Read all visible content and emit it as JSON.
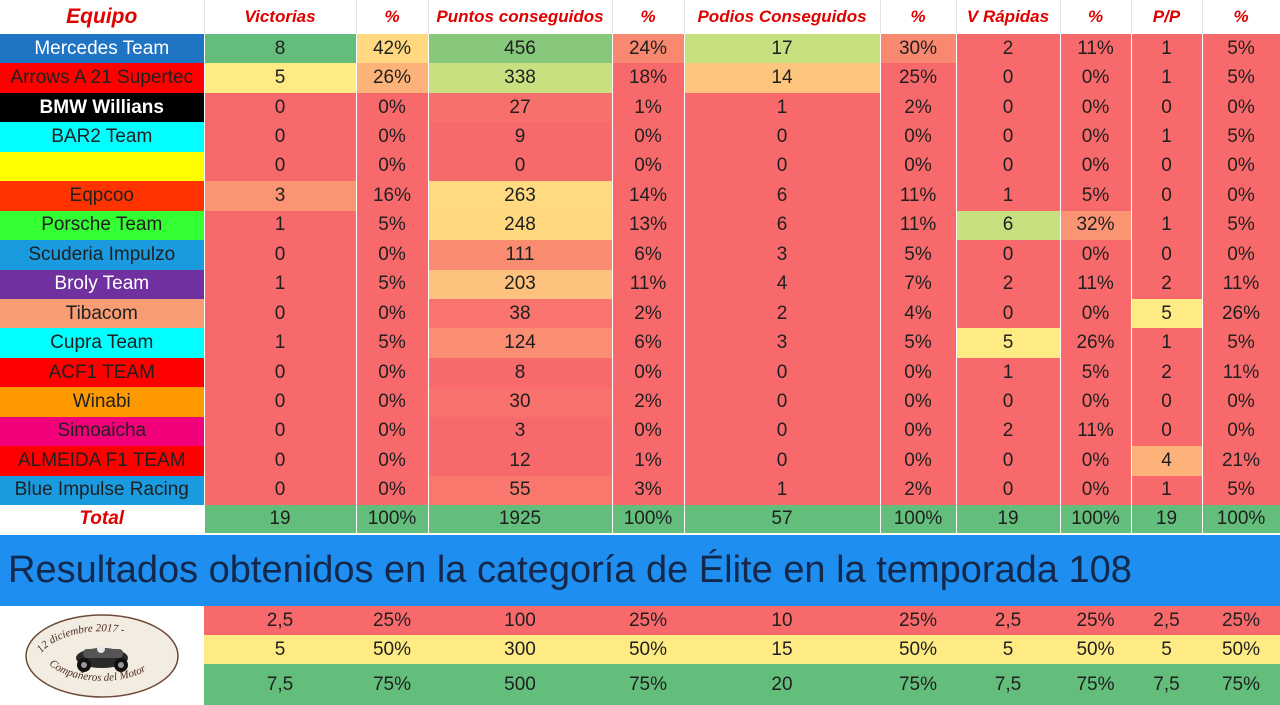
{
  "header": [
    "Equipo",
    "Victorias",
    "%",
    "Puntos conseguidos",
    "%",
    "Podios Conseguidos",
    "%",
    "V Rápidas",
    "%",
    "P/P",
    "%"
  ],
  "rows": [
    {
      "team": "Mercedes Team",
      "team_bg": "#1f74c4",
      "team_color": "#ffffff",
      "team_bold": false,
      "values": [
        "8",
        "42%",
        "456",
        "24%",
        "17",
        "30%",
        "2",
        "11%",
        "1",
        "5%"
      ],
      "bgs": [
        "#63be7b",
        "#ffd880",
        "#86c77c",
        "#f98870",
        "#c6e07f",
        "#f98870",
        "#f8696b",
        "#f8696b",
        "#f8696b",
        "#f8696b"
      ]
    },
    {
      "team": "Arrows A 21 Supertec",
      "team_bg": "#ff0000",
      "team_color": "#202020",
      "team_bold": false,
      "values": [
        "5",
        "26%",
        "338",
        "18%",
        "14",
        "25%",
        "0",
        "0%",
        "1",
        "5%"
      ],
      "bgs": [
        "#ffeb84",
        "#fcb279",
        "#c8e080",
        "#f8696b",
        "#fdc57d",
        "#f8696b",
        "#f8696b",
        "#f8696b",
        "#f8696b",
        "#f8696b"
      ]
    },
    {
      "team": "BMW Willians",
      "team_bg": "#000000",
      "team_color": "#ffffff",
      "team_bold": true,
      "values": [
        "0",
        "0%",
        "27",
        "1%",
        "1",
        "2%",
        "0",
        "0%",
        "0",
        "0%"
      ],
      "bgs": [
        "#f8696b",
        "#f8696b",
        "#f8706c",
        "#f8696b",
        "#f8696b",
        "#f8696b",
        "#f8696b",
        "#f8696b",
        "#f8696b",
        "#f8696b"
      ]
    },
    {
      "team": "BAR2 Team",
      "team_bg": "#00ffff",
      "team_color": "#202020",
      "team_bold": false,
      "values": [
        "0",
        "0%",
        "9",
        "0%",
        "0",
        "0%",
        "0",
        "0%",
        "1",
        "5%"
      ],
      "bgs": [
        "#f8696b",
        "#f8696b",
        "#f8696b",
        "#f8696b",
        "#f8696b",
        "#f8696b",
        "#f8696b",
        "#f8696b",
        "#f8696b",
        "#f8696b"
      ]
    },
    {
      "team": "",
      "team_bg": "#ffff00",
      "team_color": "#202020",
      "team_bold": false,
      "values": [
        "0",
        "0%",
        "0",
        "0%",
        "0",
        "0%",
        "0",
        "0%",
        "0",
        "0%"
      ],
      "bgs": [
        "#f8696b",
        "#f8696b",
        "#f8696b",
        "#f8696b",
        "#f8696b",
        "#f8696b",
        "#f8696b",
        "#f8696b",
        "#f8696b",
        "#f8696b"
      ]
    },
    {
      "team": "Eqpcoo",
      "team_bg": "#ff3300",
      "team_color": "#202020",
      "team_bold": false,
      "values": [
        "3",
        "16%",
        "263",
        "14%",
        "6",
        "11%",
        "1",
        "5%",
        "0",
        "0%"
      ],
      "bgs": [
        "#fa9473",
        "#f8696b",
        "#ffda81",
        "#f8696b",
        "#f8696b",
        "#f8696b",
        "#f8696b",
        "#f8696b",
        "#f8696b",
        "#f8696b"
      ]
    },
    {
      "team": "Porsche Team",
      "team_bg": "#33ff33",
      "team_color": "#202020",
      "team_bold": false,
      "values": [
        "1",
        "5%",
        "248",
        "13%",
        "6",
        "11%",
        "6",
        "32%",
        "1",
        "5%"
      ],
      "bgs": [
        "#f8696b",
        "#f8696b",
        "#ffd880",
        "#f8696b",
        "#f8696b",
        "#f8696b",
        "#c8e080",
        "#fa9473",
        "#f8696b",
        "#f8696b"
      ]
    },
    {
      "team": "Scuderia Impulzo",
      "team_bg": "#1a9be0",
      "team_color": "#202020",
      "team_bold": false,
      "values": [
        "0",
        "0%",
        "111",
        "6%",
        "3",
        "5%",
        "0",
        "0%",
        "0",
        "0%"
      ],
      "bgs": [
        "#f8696b",
        "#f8696b",
        "#fa8c72",
        "#f8696b",
        "#f8696b",
        "#f8696b",
        "#f8696b",
        "#f8696b",
        "#f8696b",
        "#f8696b"
      ]
    },
    {
      "team": "Broly Team",
      "team_bg": "#7030a0",
      "team_color": "#ffffff",
      "team_bold": false,
      "values": [
        "1",
        "5%",
        "203",
        "11%",
        "4",
        "7%",
        "2",
        "11%",
        "2",
        "11%"
      ],
      "bgs": [
        "#f8696b",
        "#f8696b",
        "#fdc27d",
        "#f8696b",
        "#f8696b",
        "#f8696b",
        "#f8696b",
        "#f8696b",
        "#f8696b",
        "#f8696b"
      ]
    },
    {
      "team": "Tibacom",
      "team_bg": "#f89c74",
      "team_color": "#202020",
      "team_bold": false,
      "values": [
        "0",
        "0%",
        "38",
        "2%",
        "2",
        "4%",
        "0",
        "0%",
        "5",
        "26%"
      ],
      "bgs": [
        "#f8696b",
        "#f8696b",
        "#f8746d",
        "#f8696b",
        "#f8696b",
        "#f8696b",
        "#f8696b",
        "#f8696b",
        "#ffeb84",
        "#f8696b"
      ]
    },
    {
      "team": "Cupra Team",
      "team_bg": "#00ffff",
      "team_color": "#202020",
      "team_bold": false,
      "values": [
        "1",
        "5%",
        "124",
        "6%",
        "3",
        "5%",
        "5",
        "26%",
        "1",
        "5%"
      ],
      "bgs": [
        "#f8696b",
        "#f8696b",
        "#fa8d72",
        "#f8696b",
        "#f8696b",
        "#f8696b",
        "#ffeb84",
        "#f8696b",
        "#f8696b",
        "#f8696b"
      ]
    },
    {
      "team": "ACF1 TEAM",
      "team_bg": "#ff0000",
      "team_color": "#202020",
      "team_bold": false,
      "values": [
        "0",
        "0%",
        "8",
        "0%",
        "0",
        "0%",
        "1",
        "5%",
        "2",
        "11%"
      ],
      "bgs": [
        "#f8696b",
        "#f8696b",
        "#f8696b",
        "#f8696b",
        "#f8696b",
        "#f8696b",
        "#f8696b",
        "#f8696b",
        "#f8696b",
        "#f8696b"
      ]
    },
    {
      "team": "Winabi",
      "team_bg": "#ff9900",
      "team_color": "#202020",
      "team_bold": false,
      "values": [
        "0",
        "0%",
        "30",
        "2%",
        "0",
        "0%",
        "0",
        "0%",
        "0",
        "0%"
      ],
      "bgs": [
        "#f8696b",
        "#f8696b",
        "#f8716c",
        "#f8696b",
        "#f8696b",
        "#f8696b",
        "#f8696b",
        "#f8696b",
        "#f8696b",
        "#f8696b"
      ]
    },
    {
      "team": "Simoaicha",
      "team_bg": "#f2007a",
      "team_color": "#202020",
      "team_bold": false,
      "values": [
        "0",
        "0%",
        "3",
        "0%",
        "0",
        "0%",
        "2",
        "11%",
        "0",
        "0%"
      ],
      "bgs": [
        "#f8696b",
        "#f8696b",
        "#f8696b",
        "#f8696b",
        "#f8696b",
        "#f8696b",
        "#f8696b",
        "#f8696b",
        "#f8696b",
        "#f8696b"
      ]
    },
    {
      "team": "ALMEIDA F1 TEAM",
      "team_bg": "#ff0000",
      "team_color": "#202020",
      "team_bold": false,
      "values": [
        "0",
        "0%",
        "12",
        "1%",
        "0",
        "0%",
        "0",
        "0%",
        "4",
        "21%"
      ],
      "bgs": [
        "#f8696b",
        "#f8696b",
        "#f8696b",
        "#f8696b",
        "#f8696b",
        "#f8696b",
        "#f8696b",
        "#f8696b",
        "#fcb279",
        "#f8696b"
      ]
    },
    {
      "team": "Blue Impulse Racing",
      "team_bg": "#1a9be0",
      "team_color": "#202020",
      "team_bold": false,
      "values": [
        "0",
        "0%",
        "55",
        "3%",
        "1",
        "2%",
        "0",
        "0%",
        "1",
        "5%"
      ],
      "bgs": [
        "#f8696b",
        "#f8696b",
        "#f8786d",
        "#f8696b",
        "#f8696b",
        "#f8696b",
        "#f8696b",
        "#f8696b",
        "#f8696b",
        "#f8696b"
      ]
    }
  ],
  "total": {
    "label": "Total",
    "values": [
      "19",
      "100%",
      "1925",
      "100%",
      "57",
      "100%",
      "19",
      "100%",
      "19",
      "100%"
    ]
  },
  "banner": "Resultados obtenidos en la categoría de Élite en la temporada 108",
  "reference_rows": [
    [
      "2,5",
      "25%",
      "100",
      "25%",
      "10",
      "25%",
      "2,5",
      "25%",
      "2,5",
      "25%"
    ],
    [
      "5",
      "50%",
      "300",
      "50%",
      "15",
      "50%",
      "5",
      "50%",
      "5",
      "50%"
    ],
    [
      "7,5",
      "75%",
      "500",
      "75%",
      "20",
      "75%",
      "7,5",
      "75%",
      "7,5",
      "75%"
    ]
  ],
  "logo": {
    "text": "12 diciembre 2017 - Compañeros del Motor",
    "icon": "race-car-seal-icon"
  }
}
